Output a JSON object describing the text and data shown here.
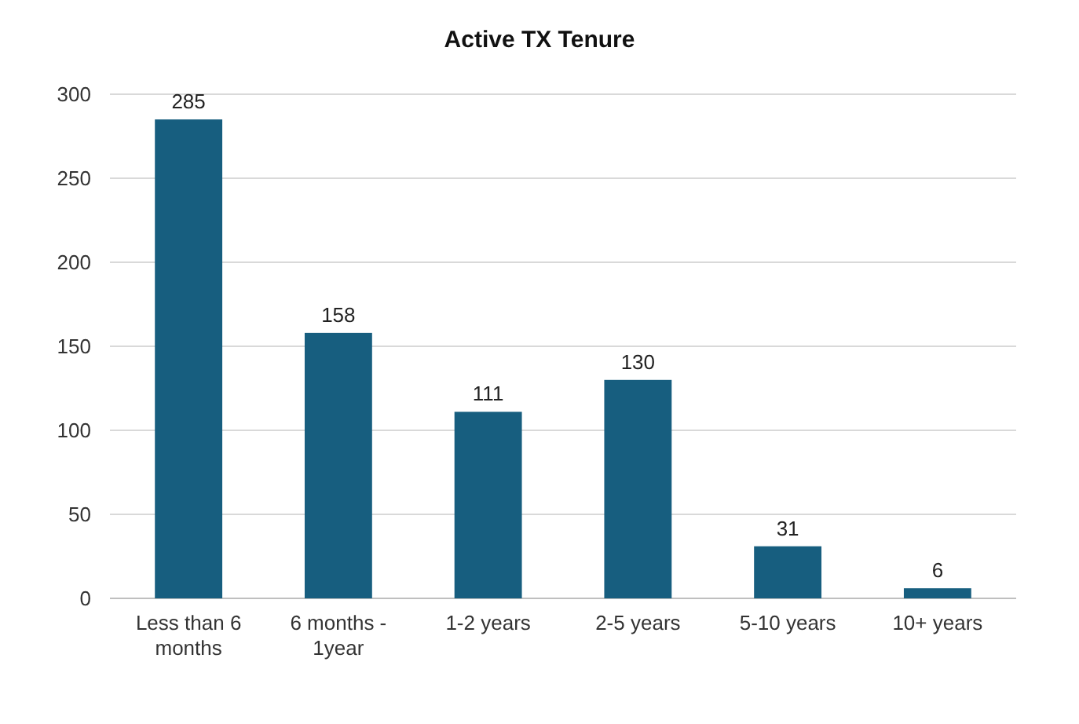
{
  "chart_data": {
    "type": "bar",
    "title": "Active TX Tenure",
    "categories": [
      "Less than 6 months",
      "6 months - 1year",
      "1-2 years",
      "2-5 years",
      "5-10 years",
      "10+ years"
    ],
    "values": [
      285,
      158,
      111,
      130,
      31,
      6
    ],
    "color": "#175e7f",
    "ylim": [
      0,
      300
    ],
    "yticks": [
      0,
      50,
      100,
      150,
      200,
      250,
      300
    ],
    "grid": "y",
    "data_labels": true
  }
}
